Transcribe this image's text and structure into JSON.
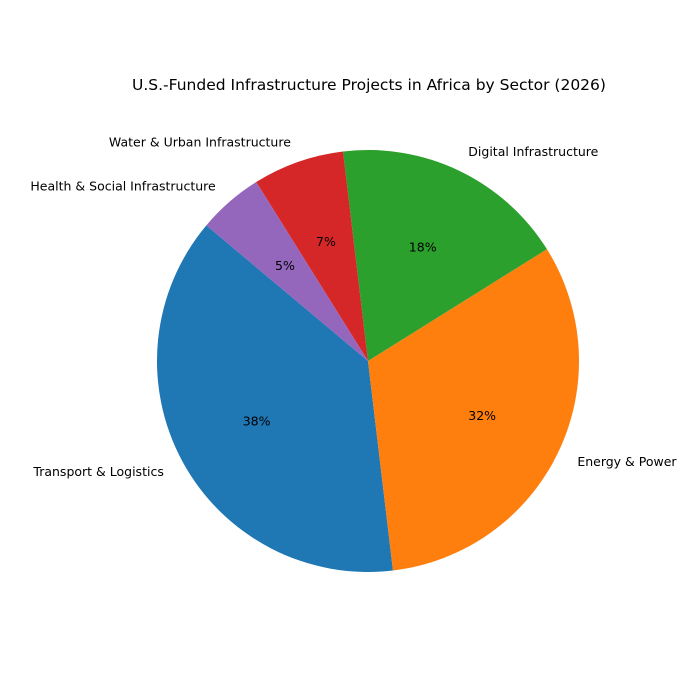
{
  "chart_data": {
    "type": "pie",
    "title": "U.S.-Funded Infrastructure Projects in Africa by Sector (2026)",
    "categories": [
      "Transport & Logistics",
      "Energy & Power",
      "Digital Infrastructure",
      "Water & Urban Infrastructure",
      "Health & Social Infrastructure"
    ],
    "values": [
      38,
      32,
      18,
      7,
      5
    ],
    "value_labels": [
      "38%",
      "32%",
      "18%",
      "7%",
      "5%"
    ],
    "colors": [
      "#1f77b4",
      "#ff7f0e",
      "#2ca02c",
      "#d62728",
      "#9467bd"
    ],
    "start_angle_deg": 140,
    "direction": "counterclockwise",
    "legend": "none"
  }
}
